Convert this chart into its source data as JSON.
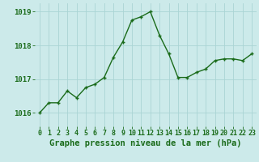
{
  "x": [
    0,
    1,
    2,
    3,
    4,
    5,
    6,
    7,
    8,
    9,
    10,
    11,
    12,
    13,
    14,
    15,
    16,
    17,
    18,
    19,
    20,
    21,
    22,
    23
  ],
  "y": [
    1016.0,
    1016.3,
    1016.3,
    1016.65,
    1016.45,
    1016.75,
    1016.85,
    1017.05,
    1017.65,
    1018.1,
    1018.75,
    1018.85,
    1019.0,
    1018.3,
    1017.75,
    1017.05,
    1017.05,
    1017.2,
    1017.3,
    1017.55,
    1017.6,
    1017.6,
    1017.55,
    1017.75
  ],
  "line_color": "#1a6b1a",
  "marker": "+",
  "marker_size": 3.5,
  "marker_lw": 1.0,
  "bg_color": "#cceaea",
  "grid_color": "#aad4d4",
  "xlabel": "Graphe pression niveau de la mer (hPa)",
  "xlabel_color": "#1a6b1a",
  "tick_color": "#1a6b1a",
  "ylim": [
    1015.6,
    1019.25
  ],
  "yticks": [
    1016,
    1017,
    1018,
    1019
  ],
  "xlim": [
    -0.5,
    23.5
  ],
  "xticks": [
    0,
    1,
    2,
    3,
    4,
    5,
    6,
    7,
    8,
    9,
    10,
    11,
    12,
    13,
    14,
    15,
    16,
    17,
    18,
    19,
    20,
    21,
    22,
    23
  ],
  "xtick_labels": [
    "0",
    "1",
    "2",
    "3",
    "4",
    "5",
    "6",
    "7",
    "8",
    "9",
    "10",
    "11",
    "12",
    "13",
    "14",
    "15",
    "16",
    "17",
    "18",
    "19",
    "20",
    "21",
    "22",
    "23"
  ],
  "line_width": 1.0,
  "xlabel_fontsize": 7.5,
  "tick_fontsize": 6.0,
  "ytick_fontsize": 6.5
}
